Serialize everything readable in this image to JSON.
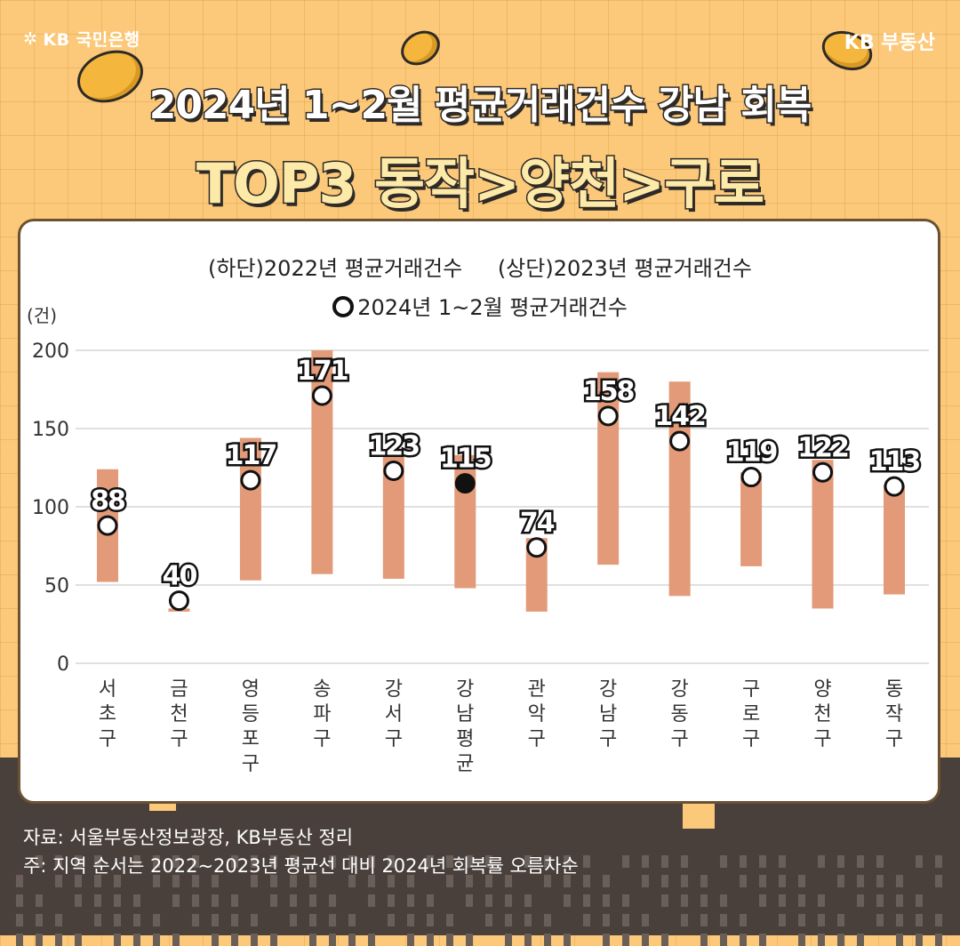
{
  "brand": {
    "left_logo": "KB 국민은행",
    "right_logo": "KB 부동산"
  },
  "header": {
    "title_line1": "2024년 1~2월 평균거래건수 강남 회복",
    "title_line2": "TOP3 동작>양천>구로"
  },
  "legend": {
    "bottom_label": "(하단)2022년 평균거래건수",
    "top_label": "(상단)2023년 평균거래건수",
    "marker_label": "2024년 1~2월 평균거래건수"
  },
  "footer": {
    "source": "자료: 서울부동산정보광장, KB부동산 정리",
    "note": "주: 지역 순서는 2022~2023년 평균선 대비 2024년 회복률 오름차순"
  },
  "colors": {
    "bar": "#E29A78",
    "marker_fill": "#FFFFFF",
    "highlight_marker_fill": "#111111",
    "grid": "#D6D6D6"
  },
  "chart_data": {
    "type": "range-bar",
    "yunit": "(건)",
    "ylim": [
      0,
      200
    ],
    "yticks": [
      0,
      50,
      100,
      150,
      200
    ],
    "grid": true,
    "categories": [
      "서초구",
      "금천구",
      "영등포구",
      "송파구",
      "강서구",
      "강남평균",
      "관악구",
      "강남구",
      "강동구",
      "구로구",
      "양천구",
      "동작구"
    ],
    "bar_bottom": [
      52,
      33,
      53,
      57,
      54,
      48,
      33,
      63,
      43,
      62,
      35,
      44
    ],
    "bar_top": [
      124,
      35,
      144,
      200,
      135,
      133,
      80,
      186,
      180,
      122,
      130,
      114
    ],
    "values_2024": [
      88,
      40,
      117,
      171,
      123,
      115,
      74,
      158,
      142,
      119,
      122,
      113
    ],
    "highlight": "강남평균"
  }
}
